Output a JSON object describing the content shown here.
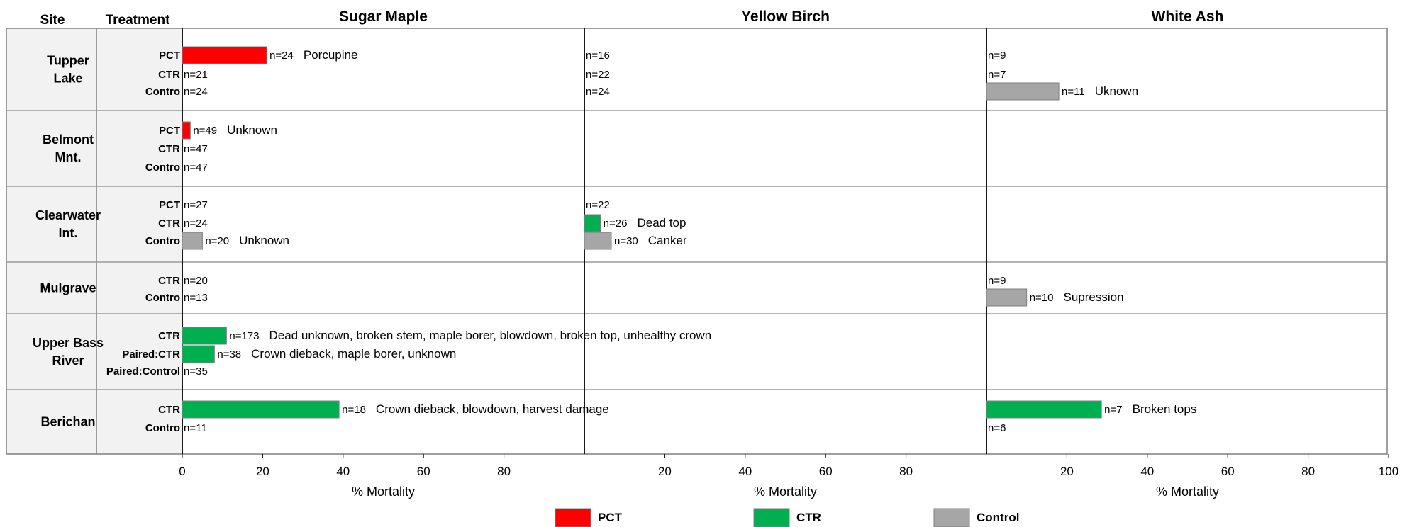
{
  "header": {
    "site": "Site",
    "treatment": "Treatment"
  },
  "chart_data": {
    "type": "bar",
    "orientation": "horizontal",
    "panels": [
      {
        "title": "Sugar Maple",
        "xlabel": "% Mortality",
        "xticks": [
          "0",
          "20",
          "40",
          "60",
          "80"
        ]
      },
      {
        "title": "Yellow Birch",
        "xlabel": "% Mortality",
        "xticks": [
          "20",
          "40",
          "60",
          "80"
        ]
      },
      {
        "title": "White Ash",
        "xlabel": "% Mortality",
        "xticks": [
          "20",
          "40",
          "60",
          "80",
          "100"
        ]
      }
    ],
    "xlim": [
      0,
      100
    ],
    "legend": {
      "placement": "bottom",
      "items": [
        {
          "label": "PCT",
          "color": "#ff0000"
        },
        {
          "label": "CTR",
          "color": "#00b050"
        },
        {
          "label": "Control",
          "color": "#a6a6a6"
        }
      ]
    },
    "sites": [
      {
        "name": [
          "Tupper",
          "Lake"
        ],
        "treatments": [
          {
            "label": "PCT",
            "color": "#ff0000",
            "cells": [
              {
                "value": 21,
                "n": "n=24",
                "cause": "Porcupine"
              },
              {
                "value": 0,
                "n": "n=16",
                "cause": ""
              },
              {
                "value": 0,
                "n": "n=9",
                "cause": ""
              }
            ]
          },
          {
            "label": "CTR",
            "color": "#00b050",
            "cells": [
              {
                "value": 0,
                "n": "n=21",
                "cause": ""
              },
              {
                "value": 0,
                "n": "n=22",
                "cause": ""
              },
              {
                "value": 0,
                "n": "n=7",
                "cause": ""
              }
            ]
          },
          {
            "label": "Contro",
            "color": "#a6a6a6",
            "cells": [
              {
                "value": 0,
                "n": "n=24",
                "cause": ""
              },
              {
                "value": 0,
                "n": "n=24",
                "cause": ""
              },
              {
                "value": 18,
                "n": "n=11",
                "cause": "Uknown"
              }
            ]
          }
        ]
      },
      {
        "name": [
          "Belmont",
          "Mnt."
        ],
        "treatments": [
          {
            "label": "PCT",
            "color": "#ff0000",
            "cells": [
              {
                "value": 2,
                "n": "n=49",
                "cause": "Unknown"
              },
              null,
              null
            ]
          },
          {
            "label": "CTR",
            "color": "#00b050",
            "cells": [
              {
                "value": 0,
                "n": "n=47",
                "cause": ""
              },
              null,
              null
            ]
          },
          {
            "label": "Contro",
            "color": "#a6a6a6",
            "cells": [
              {
                "value": 0,
                "n": "n=47",
                "cause": ""
              },
              null,
              null
            ]
          }
        ]
      },
      {
        "name": [
          "Clearwater",
          "Int."
        ],
        "treatments": [
          {
            "label": "PCT",
            "color": "#ff0000",
            "cells": [
              {
                "value": 0,
                "n": "n=27",
                "cause": ""
              },
              {
                "value": 0,
                "n": "n=22",
                "cause": ""
              },
              null
            ]
          },
          {
            "label": "CTR",
            "color": "#00b050",
            "cells": [
              {
                "value": 0,
                "n": "n=24",
                "cause": ""
              },
              {
                "value": 4,
                "n": "n=26",
                "cause": "Dead top"
              },
              null
            ]
          },
          {
            "label": "Contro",
            "color": "#a6a6a6",
            "cells": [
              {
                "value": 5,
                "n": "n=20",
                "cause": "Unknown"
              },
              {
                "value": 6.7,
                "n": "n=30",
                "cause": "Canker"
              },
              null
            ]
          }
        ]
      },
      {
        "name": [
          "Mulgrave"
        ],
        "treatments": [
          {
            "label": "CTR",
            "color": "#00b050",
            "cells": [
              {
                "value": 0,
                "n": "n=20",
                "cause": ""
              },
              null,
              {
                "value": 0,
                "n": "n=9",
                "cause": ""
              }
            ]
          },
          {
            "label": "Contro",
            "color": "#a6a6a6",
            "cells": [
              {
                "value": 0,
                "n": "n=13",
                "cause": ""
              },
              null,
              {
                "value": 10,
                "n": "n=10",
                "cause": "Supression"
              }
            ]
          }
        ]
      },
      {
        "name": [
          "Upper Bass",
          "River"
        ],
        "treatments": [
          {
            "label": "CTR",
            "color": "#00b050",
            "cells": [
              {
                "value": 11,
                "n": "n=173",
                "cause": "Dead unknown, broken stem, maple borer, blowdown, broken top, unhealthy crown"
              },
              null,
              null
            ]
          },
          {
            "label": "Paired:CTR",
            "color": "#00b050",
            "cells": [
              {
                "value": 8,
                "n": "n=38",
                "cause": "Crown dieback, maple borer, unknown"
              },
              null,
              null
            ]
          },
          {
            "label": "Paired:Control",
            "color": "#a6a6a6",
            "cells": [
              {
                "value": 0,
                "n": "n=35",
                "cause": ""
              },
              null,
              null
            ]
          }
        ]
      },
      {
        "name": [
          "Berichan"
        ],
        "treatments": [
          {
            "label": "CTR",
            "color": "#00b050",
            "cells": [
              {
                "value": 39,
                "n": "n=18",
                "cause": "Crown dieback, blowdown, harvest damage"
              },
              null,
              {
                "value": 28.6,
                "n": "n=7",
                "cause": "Broken tops"
              }
            ]
          },
          {
            "label": "Contro",
            "color": "#a6a6a6",
            "cells": [
              {
                "value": 0,
                "n": "n=11",
                "cause": ""
              },
              null,
              {
                "value": 0,
                "n": "n=6",
                "cause": ""
              }
            ]
          }
        ]
      }
    ]
  }
}
